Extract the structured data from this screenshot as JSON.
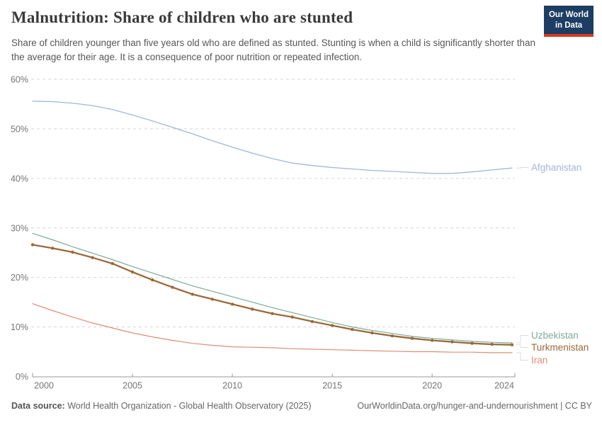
{
  "header": {
    "title": "Malnutrition: Share of children who are stunted",
    "subtitle": "Share of children younger than five years old who are defined as stunted. Stunting is when a child is significantly shorter than the average for their age. It is a consequence of poor nutrition or repeated infection.",
    "logo": {
      "line1": "Our World",
      "line2": "in Data",
      "bg": "#1d3d63",
      "accent": "#d93a23"
    }
  },
  "chart_data": {
    "type": "line",
    "title": "Malnutrition: Share of children who are stunted",
    "x": [
      2000,
      2001,
      2002,
      2003,
      2004,
      2005,
      2006,
      2007,
      2008,
      2009,
      2010,
      2011,
      2012,
      2013,
      2014,
      2015,
      2016,
      2017,
      2018,
      2019,
      2020,
      2021,
      2022,
      2023,
      2024
    ],
    "series": [
      {
        "name": "Afghanistan",
        "color": "#a2b6d6",
        "line_width": 1.3,
        "markers": false,
        "values": [
          55.6,
          55.5,
          55.2,
          54.7,
          53.9,
          52.8,
          51.6,
          50.3,
          49.0,
          47.6,
          46.3,
          45.1,
          44.0,
          43.1,
          42.6,
          42.2,
          41.9,
          41.6,
          41.4,
          41.2,
          41.0,
          41.0,
          41.3,
          41.7,
          42.1
        ]
      },
      {
        "name": "Uzbekistan",
        "color": "#7dab96",
        "line_width": 1.2,
        "markers": false,
        "values": [
          28.9,
          27.6,
          26.2,
          24.9,
          23.6,
          22.2,
          20.9,
          19.6,
          18.3,
          17.2,
          16.1,
          15.0,
          13.9,
          12.9,
          11.9,
          10.9,
          10.0,
          9.3,
          8.7,
          8.1,
          7.7,
          7.4,
          7.1,
          6.9,
          6.8
        ]
      },
      {
        "name": "Turkmenistan",
        "color": "#9a6a39",
        "line_width": 2.3,
        "markers": true,
        "values": [
          26.6,
          25.9,
          25.1,
          24.0,
          22.8,
          21.1,
          19.5,
          18.0,
          16.6,
          15.6,
          14.6,
          13.6,
          12.7,
          12.0,
          11.1,
          10.3,
          9.5,
          8.8,
          8.2,
          7.7,
          7.3,
          7.0,
          6.7,
          6.5,
          6.4
        ]
      },
      {
        "name": "Iran",
        "color": "#dd8e74",
        "line_width": 1.2,
        "markers": false,
        "values": [
          14.7,
          13.3,
          12.0,
          10.8,
          9.8,
          8.8,
          8.0,
          7.3,
          6.7,
          6.3,
          6.0,
          5.9,
          5.8,
          5.6,
          5.5,
          5.4,
          5.3,
          5.2,
          5.1,
          5.0,
          5.0,
          4.9,
          4.9,
          4.8,
          4.8
        ]
      }
    ],
    "ylim": [
      0,
      60
    ],
    "yticks": [
      [
        0,
        "0%"
      ],
      [
        10,
        "10%"
      ],
      [
        20,
        "20%"
      ],
      [
        30,
        "30%"
      ],
      [
        40,
        "40%"
      ],
      [
        50,
        "50%"
      ],
      [
        60,
        "60%"
      ]
    ],
    "xticks": [
      [
        2000,
        "2000"
      ],
      [
        2005,
        "2005"
      ],
      [
        2010,
        "2010"
      ],
      [
        2015,
        "2015"
      ],
      [
        2020,
        "2020"
      ],
      [
        2024,
        "2024"
      ]
    ],
    "grid": "horizontal-dashed",
    "legend_position": "right-of-lines"
  },
  "footer": {
    "source_label": "Data source:",
    "source_text": " World Health Organization - Global Health Observatory (2025)",
    "link_text": "OurWorldinData.org/hunger-and-undernourishment | CC BY"
  }
}
